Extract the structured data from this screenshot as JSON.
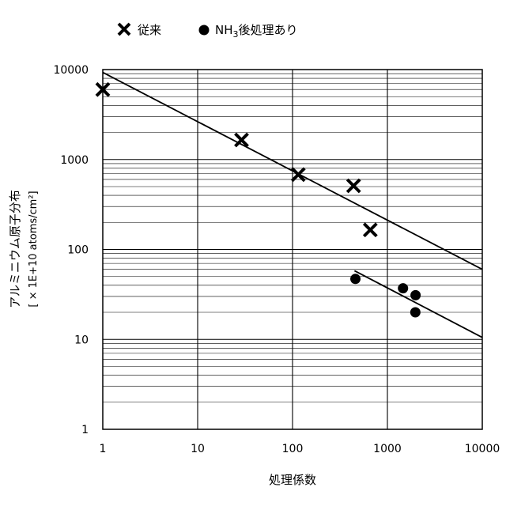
{
  "chart_data": {
    "type": "scatter",
    "xlabel": "処理係数",
    "ylabel": "アルミニウム原子分布",
    "ylabel_unit": "[ × 1E+10 atoms/cm²]",
    "xscale": "log",
    "yscale": "log",
    "xlim": [
      1,
      10000
    ],
    "ylim": [
      1,
      10000
    ],
    "x_ticks": [
      "1",
      "10",
      "100",
      "1000",
      "10000"
    ],
    "y_ticks": [
      "1",
      "10",
      "100",
      "1000",
      "10000"
    ],
    "grid": "x-major-vertical, y-major-and-minor-horizontal",
    "legend_position": "top",
    "legend": [
      {
        "label": "従来",
        "marker": "x"
      },
      {
        "label": "NH",
        "sub": "3",
        "suffix": "後処理あり",
        "marker": "filled-circle"
      }
    ],
    "series": [
      {
        "name": "従来",
        "marker": "x",
        "points": [
          {
            "x": 1,
            "y": 6000
          },
          {
            "x": 29,
            "y": 1650
          },
          {
            "x": 115,
            "y": 680
          },
          {
            "x": 440,
            "y": 510
          },
          {
            "x": 660,
            "y": 165
          }
        ],
        "trendline": [
          {
            "x": 1,
            "y": 9300
          },
          {
            "x": 10000,
            "y": 60
          }
        ]
      },
      {
        "name": "NH3後処理あり",
        "marker": "filled-circle",
        "points": [
          {
            "x": 460,
            "y": 47
          },
          {
            "x": 1460,
            "y": 37
          },
          {
            "x": 1980,
            "y": 31
          },
          {
            "x": 1970,
            "y": 20
          }
        ],
        "trendline": [
          {
            "x": 450,
            "y": 58
          },
          {
            "x": 10000,
            "y": 10.5
          }
        ]
      }
    ]
  },
  "colors": {
    "ink": "#000000",
    "background": "#ffffff"
  }
}
